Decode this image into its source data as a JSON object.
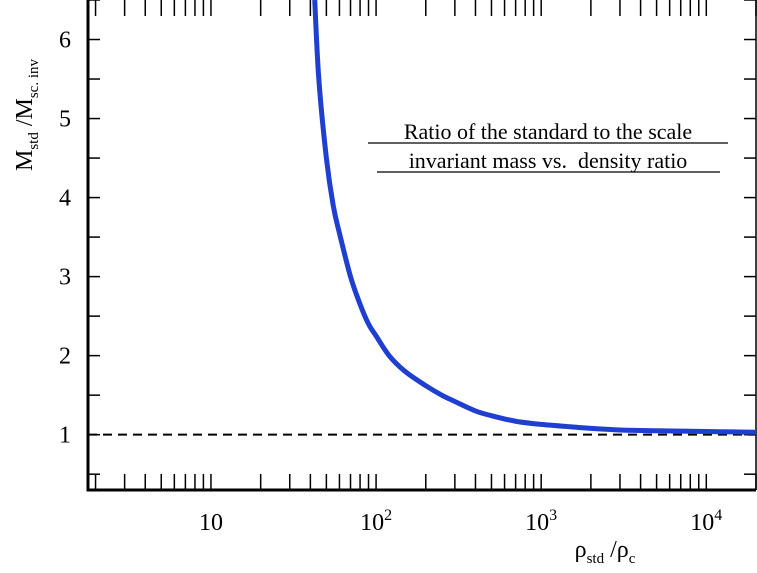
{
  "chart_data": {
    "type": "line",
    "xscale": "log",
    "xlim": [
      1.8,
      20000
    ],
    "ylim": [
      0.3,
      6.5
    ],
    "x_ticks": [
      {
        "value": 10,
        "base": "10",
        "exp": ""
      },
      {
        "value": 100,
        "base": "10",
        "exp": "2"
      },
      {
        "value": 1000,
        "base": "10",
        "exp": "3"
      },
      {
        "value": 10000,
        "base": "10",
        "exp": "4"
      }
    ],
    "y_ticks": [
      1,
      2,
      3,
      4,
      5,
      6
    ],
    "xlabel": {
      "main": "ρ",
      "sub": "std",
      "sep": " /",
      "main2": "ρ",
      "sub2": "c"
    },
    "ylabel": {
      "main": "M",
      "sub": "std",
      "sep": " /",
      "main2": "M",
      "sub2": "sc. inv"
    },
    "annotation": [
      "Ratio of the standard to the scale",
      "invariant mass vs.  density ratio"
    ],
    "reference_line": {
      "y": 1.0,
      "style": "dashed",
      "color": "#000000"
    },
    "series": [
      {
        "color": "#1f3fd0",
        "x": [
          42.5,
          45,
          50,
          55,
          60,
          70,
          80,
          90,
          100,
          120,
          150,
          200,
          250,
          300,
          400,
          500,
          700,
          1000,
          1500,
          2000,
          3000,
          5000,
          7000,
          10000,
          15000,
          20000
        ],
        "y": [
          6.5,
          5.5,
          4.5,
          3.9,
          3.55,
          3.0,
          2.65,
          2.4,
          2.25,
          2.0,
          1.8,
          1.62,
          1.5,
          1.42,
          1.3,
          1.24,
          1.17,
          1.13,
          1.1,
          1.08,
          1.06,
          1.05,
          1.045,
          1.04,
          1.035,
          1.03
        ]
      }
    ]
  }
}
